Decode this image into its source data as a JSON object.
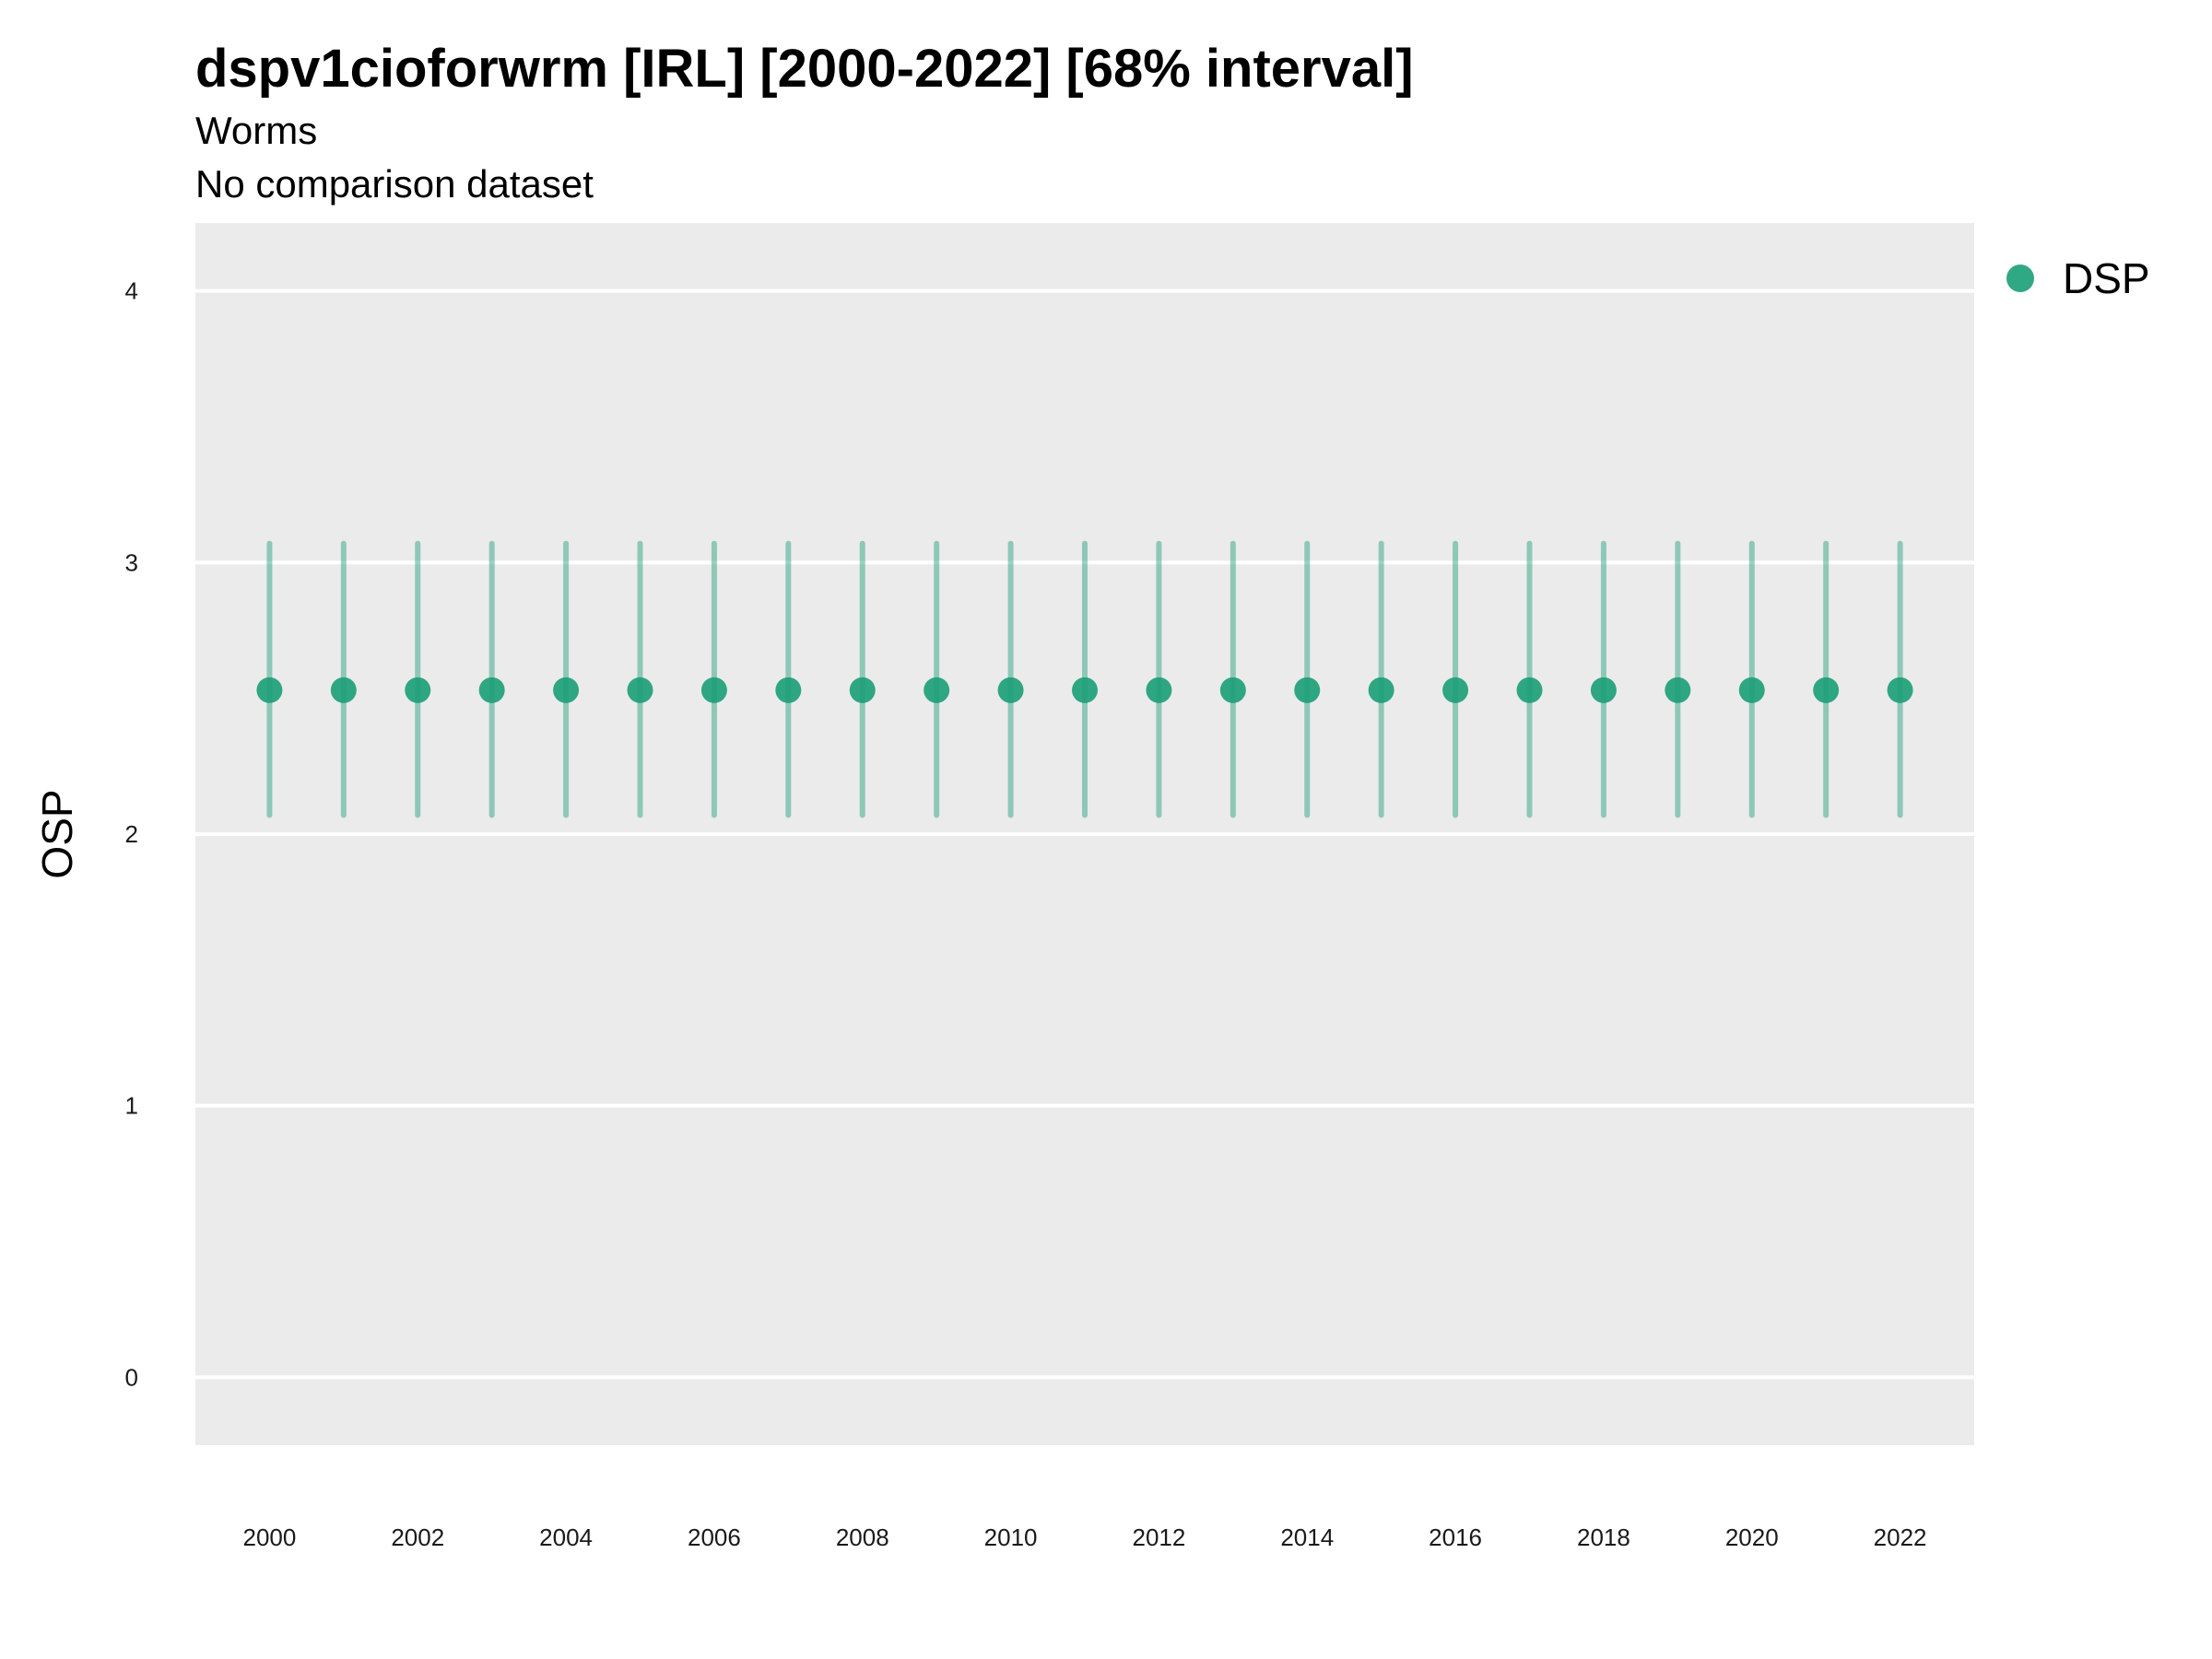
{
  "chart_data": {
    "type": "scatter",
    "title": "dspv1cioforwrm [IRL] [2000-2022] [68% interval]",
    "subtitle": "Worms",
    "caption_line": "No comparison dataset",
    "xlabel": "",
    "ylabel": "OSP",
    "xlim": [
      1999.0,
      2023.0
    ],
    "ylim": [
      -0.25,
      4.25
    ],
    "x_ticks": [
      2000,
      2002,
      2004,
      2006,
      2008,
      2010,
      2012,
      2014,
      2016,
      2018,
      2020,
      2022
    ],
    "y_ticks": [
      0,
      1,
      2,
      3,
      4
    ],
    "grid": true,
    "legend_position": "top-right",
    "series": [
      {
        "name": "DSP",
        "color": "#1b9e77",
        "x": [
          2000,
          2001,
          2002,
          2003,
          2004,
          2005,
          2006,
          2007,
          2008,
          2009,
          2010,
          2011,
          2012,
          2013,
          2014,
          2015,
          2016,
          2017,
          2018,
          2019,
          2020,
          2021,
          2022
        ],
        "y": [
          2.53,
          2.53,
          2.53,
          2.53,
          2.53,
          2.53,
          2.53,
          2.53,
          2.53,
          2.53,
          2.53,
          2.53,
          2.53,
          2.53,
          2.53,
          2.53,
          2.53,
          2.53,
          2.53,
          2.53,
          2.53,
          2.53,
          2.53
        ],
        "lower": [
          2.07,
          2.07,
          2.07,
          2.07,
          2.07,
          2.07,
          2.07,
          2.07,
          2.07,
          2.07,
          2.07,
          2.07,
          2.07,
          2.07,
          2.07,
          2.07,
          2.07,
          2.07,
          2.07,
          2.07,
          2.07,
          2.07,
          2.07
        ],
        "upper": [
          3.07,
          3.07,
          3.07,
          3.07,
          3.07,
          3.07,
          3.07,
          3.07,
          3.07,
          3.07,
          3.07,
          3.07,
          3.07,
          3.07,
          3.07,
          3.07,
          3.07,
          3.07,
          3.07,
          3.07,
          3.07,
          3.07,
          3.07
        ]
      }
    ]
  }
}
